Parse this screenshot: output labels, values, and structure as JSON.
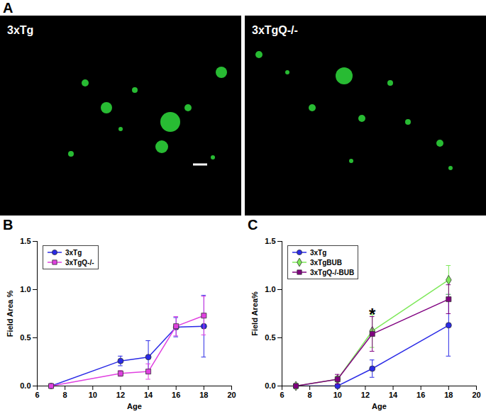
{
  "images": {
    "label": "A",
    "panels": [
      {
        "label": "3xTg"
      },
      {
        "label": "3xTgQ-/-"
      }
    ]
  },
  "chart_data": [
    {
      "type": "line",
      "title": "B",
      "x_label": "Age",
      "y_label": "Field Area %",
      "x": [
        7,
        12,
        14,
        16,
        18
      ],
      "series": [
        {
          "name": "3xTg",
          "color": "#2a2ae6",
          "marker": "circle",
          "line_style": "solid",
          "values": [
            0,
            0.26,
            0.3,
            0.61,
            0.62
          ],
          "errors": [
            0,
            0.05,
            0.17,
            0.1,
            0.32
          ]
        },
        {
          "name": "3xTgQ-/-",
          "color": "#e040e0",
          "marker": "square",
          "line_style": "solid",
          "values": [
            0,
            0.13,
            0.15,
            0.62,
            0.73
          ],
          "errors": [
            0,
            0.03,
            0.08,
            0.1,
            0.2
          ]
        }
      ],
      "xlim": [
        6,
        20
      ],
      "xticks": [
        6,
        8,
        10,
        12,
        14,
        16,
        18,
        20
      ],
      "ylim": [
        0,
        1.5
      ],
      "yticks": [
        {
          "value": 0,
          "label": "0.0"
        },
        {
          "value": 0.5,
          "label": "0.5"
        },
        {
          "value": 1,
          "label": "1.0"
        },
        {
          "value": 1.5,
          "label": "1.5"
        }
      ],
      "legend": "top-left",
      "grid": false
    },
    {
      "type": "line",
      "title": "C",
      "x_label": "Age",
      "y_label": "Field Area%",
      "x": [
        7,
        10,
        12.5,
        18
      ],
      "series": [
        {
          "name": "3xTg",
          "color": "#2a2ae6",
          "marker": "circle",
          "line_style": "solid",
          "values": [
            0,
            0.0,
            0.18,
            0.63
          ],
          "errors": [
            0,
            0.02,
            0.09,
            0.32
          ]
        },
        {
          "name": "3xTgBUB",
          "color": "#7ee85a",
          "marker": "diamond",
          "line_style": "solid",
          "values": [
            0,
            0.07,
            0.57,
            1.1
          ],
          "errors": [
            0,
            0.03,
            0.17,
            0.15
          ]
        },
        {
          "name": "3xTgQ-/-BUB",
          "color": "#800080",
          "marker": "square",
          "line_style": "solid",
          "values": [
            0,
            0.07,
            0.54,
            0.9
          ],
          "errors": [
            0,
            0.05,
            0.18,
            0.15
          ]
        }
      ],
      "annotations": [
        {
          "text": "*",
          "x": 12.5,
          "y": 0.78
        }
      ],
      "xlim": [
        6,
        20
      ],
      "xticks": [
        6,
        8,
        10,
        12,
        14,
        16,
        18,
        20
      ],
      "ylim": [
        0,
        1.5
      ],
      "yticks": [
        {
          "value": 0,
          "label": "0.0"
        },
        {
          "value": 0.5,
          "label": "0.5"
        },
        {
          "value": 1,
          "label": "1.0"
        },
        {
          "value": 1.5,
          "label": "1.5"
        }
      ],
      "legend": "top-left",
      "grid": false
    }
  ]
}
